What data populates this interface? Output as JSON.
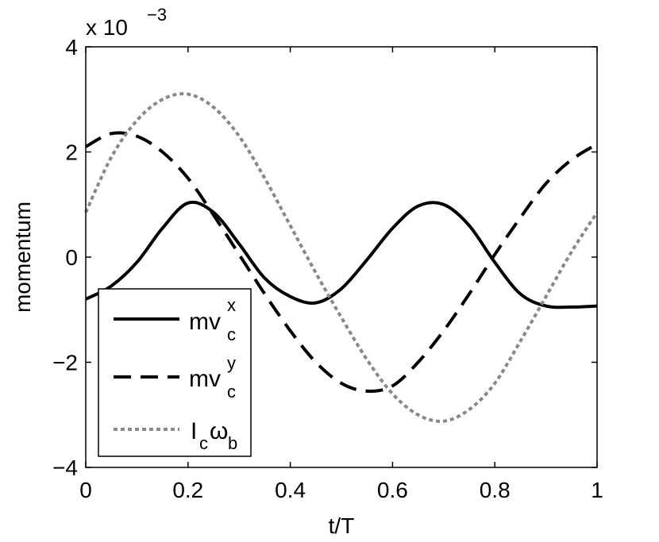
{
  "chart_data": {
    "type": "line",
    "title": "",
    "xlabel": "t/T",
    "ylabel": "momentum",
    "y_scale_label": "x 10",
    "y_scale_exponent": "−3",
    "xlim": [
      0,
      1
    ],
    "ylim": [
      -4,
      4
    ],
    "x_ticks": [
      0,
      0.2,
      0.4,
      0.6,
      0.8,
      1
    ],
    "x_tick_labels": [
      "0",
      "0.2",
      "0.4",
      "0.6",
      "0.8",
      "1"
    ],
    "y_ticks": [
      -4,
      -2,
      0,
      2,
      4
    ],
    "y_tick_labels": [
      "−4",
      "−2",
      "0",
      "2",
      "4"
    ],
    "grid": false,
    "legend_position": "bottom-left",
    "series": [
      {
        "legend_main": "mv",
        "legend_sub": "c",
        "legend_sup": "x",
        "style": "solid",
        "color": "#000000",
        "x": [
          0,
          0.05,
          0.1,
          0.15,
          0.2,
          0.25,
          0.3,
          0.35,
          0.4,
          0.45,
          0.5,
          0.55,
          0.6,
          0.65,
          0.7,
          0.75,
          0.8,
          0.85,
          0.9,
          0.95,
          1.0
        ],
        "y": [
          -0.8,
          -0.55,
          -0.1,
          0.55,
          1.03,
          0.85,
          0.25,
          -0.4,
          -0.75,
          -0.87,
          -0.6,
          -0.05,
          0.55,
          0.97,
          1.0,
          0.6,
          -0.1,
          -0.7,
          -0.93,
          -0.95,
          -0.93
        ]
      },
      {
        "legend_main": "mv",
        "legend_sub": "c",
        "legend_sup": "y",
        "style": "dashed",
        "color": "#000000",
        "x": [
          0,
          0.05,
          0.1,
          0.15,
          0.2,
          0.25,
          0.3,
          0.35,
          0.4,
          0.45,
          0.5,
          0.55,
          0.6,
          0.65,
          0.7,
          0.75,
          0.8,
          0.85,
          0.9,
          0.95,
          1.0
        ],
        "y": [
          2.1,
          2.35,
          2.3,
          2.0,
          1.5,
          0.8,
          0.05,
          -0.7,
          -1.4,
          -2.0,
          -2.4,
          -2.55,
          -2.45,
          -2.0,
          -1.4,
          -0.7,
          0.05,
          0.75,
          1.4,
          1.85,
          2.15
        ]
      },
      {
        "legend_main": "I",
        "legend_sub": "c",
        "legend_main2": "ω",
        "legend_sub2": "b",
        "style": "dotted",
        "color": "#888888",
        "x": [
          0,
          0.05,
          0.1,
          0.15,
          0.2,
          0.25,
          0.3,
          0.35,
          0.4,
          0.45,
          0.5,
          0.55,
          0.6,
          0.65,
          0.7,
          0.75,
          0.8,
          0.85,
          0.9,
          0.95,
          1.0
        ],
        "y": [
          0.85,
          1.9,
          2.6,
          3.0,
          3.1,
          2.85,
          2.3,
          1.5,
          0.6,
          -0.3,
          -1.15,
          -1.95,
          -2.6,
          -3.0,
          -3.12,
          -2.9,
          -2.4,
          -1.6,
          -0.75,
          0.1,
          0.85
        ]
      }
    ]
  }
}
